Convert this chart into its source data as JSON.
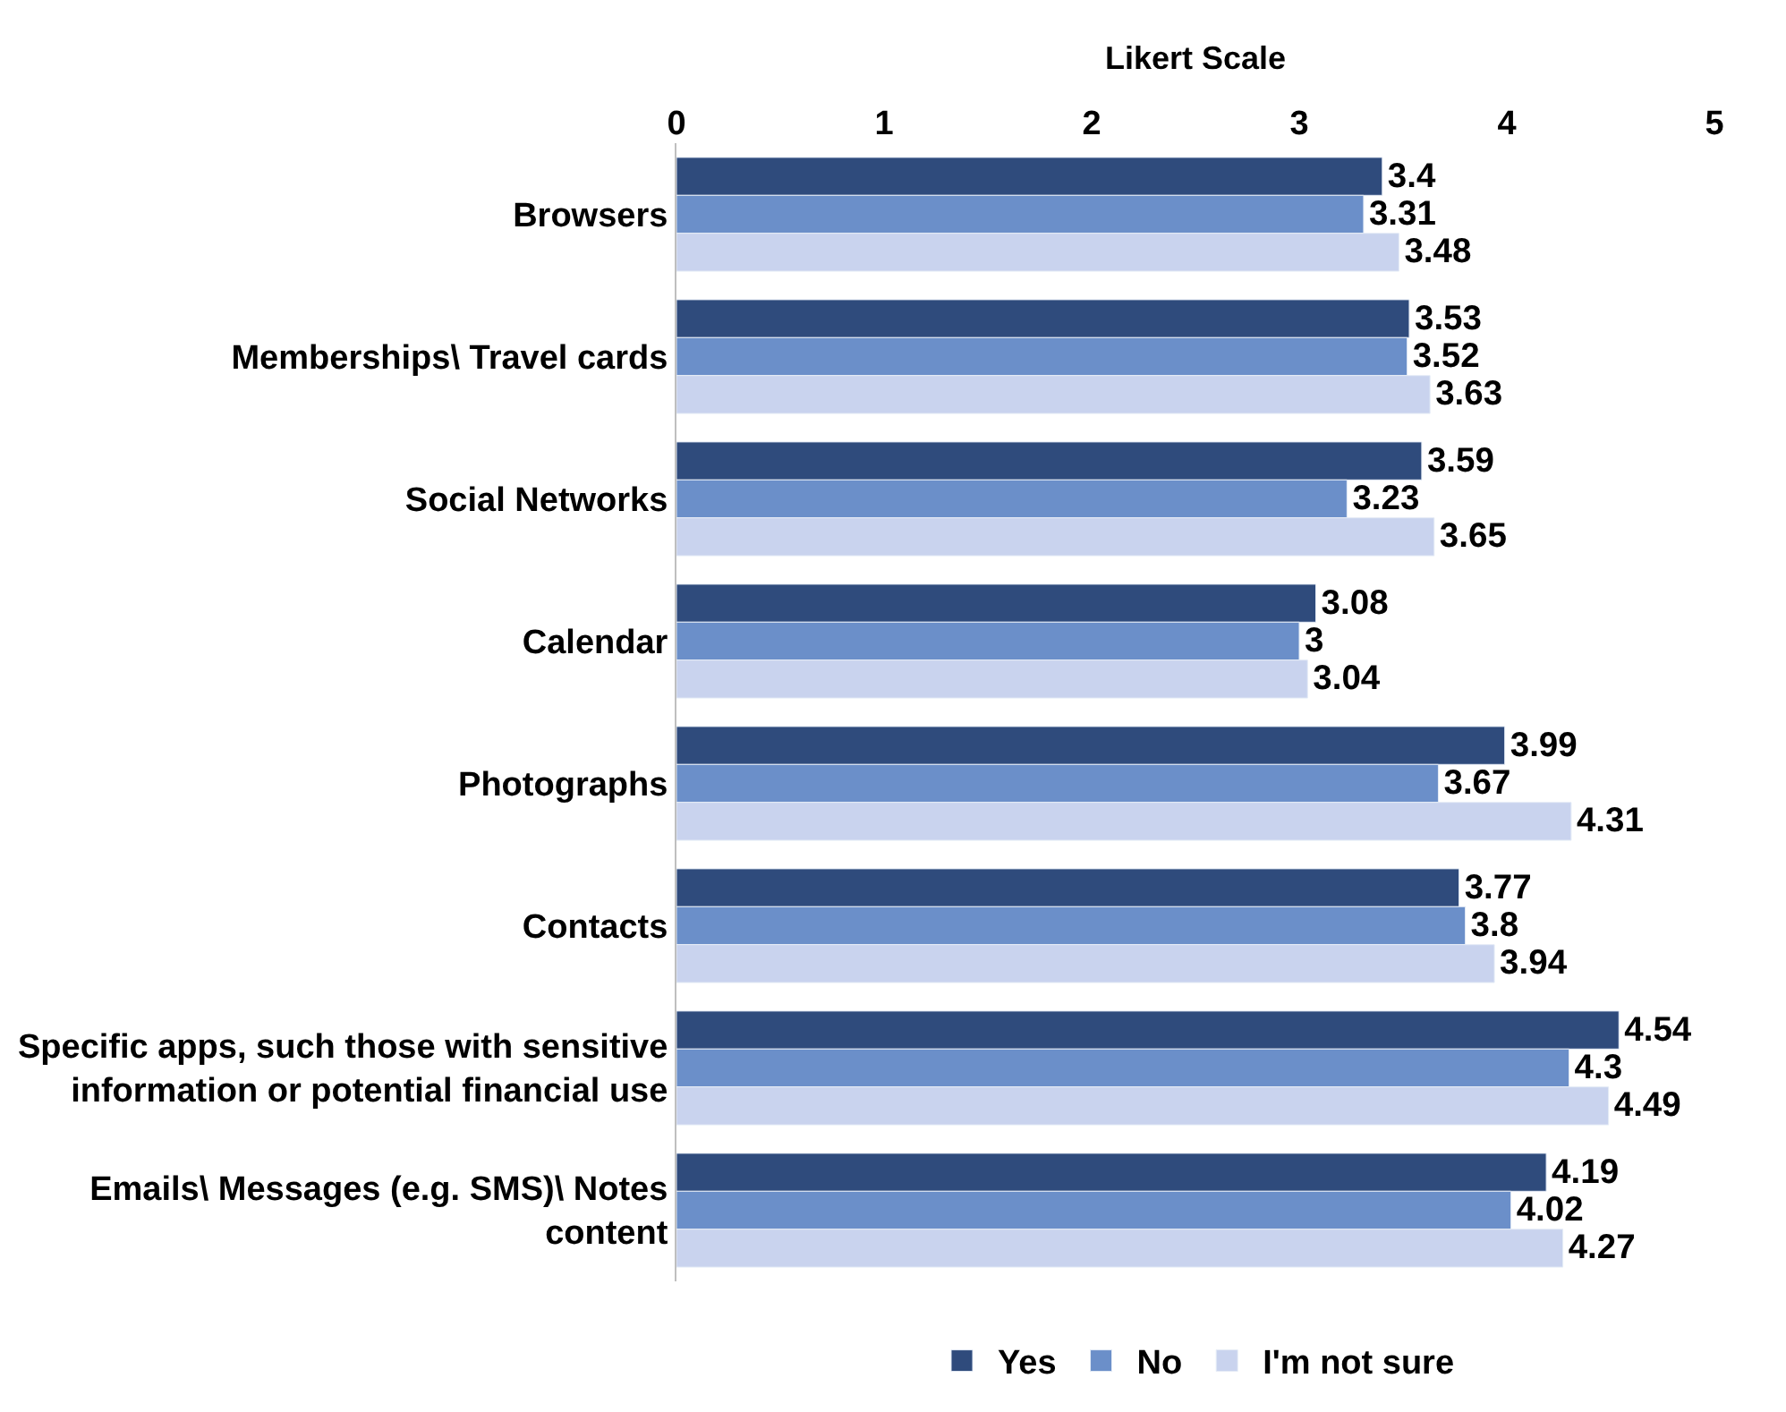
{
  "chart_data": {
    "type": "bar",
    "orientation": "horizontal",
    "xlabel": "Likert Scale",
    "categories": [
      "Browsers",
      "Memberships\\ Travel cards",
      "Social Networks",
      "Calendar",
      "Photographs",
      "Contacts",
      "Specific apps, such those with sensitive information or potential financial use",
      "Emails\\ Messages (e.g. SMS)\\ Notes content"
    ],
    "series": [
      {
        "name": "Yes",
        "color": "#2f4b7c",
        "values": [
          3.4,
          3.53,
          3.59,
          3.08,
          3.99,
          3.77,
          4.54,
          4.19
        ]
      },
      {
        "name": "No",
        "color": "#6b8fc9",
        "values": [
          3.31,
          3.52,
          3.23,
          3,
          3.67,
          3.8,
          4.3,
          4.02
        ]
      },
      {
        "name": "I'm not sure",
        "color": "#c9d3ee",
        "values": [
          3.48,
          3.63,
          3.65,
          3.04,
          4.31,
          3.94,
          4.49,
          4.27
        ]
      }
    ],
    "xlim": [
      0,
      5
    ],
    "xticks": [
      0,
      1,
      2,
      3,
      4,
      5
    ],
    "legend": "bottom",
    "data_labels": true
  }
}
